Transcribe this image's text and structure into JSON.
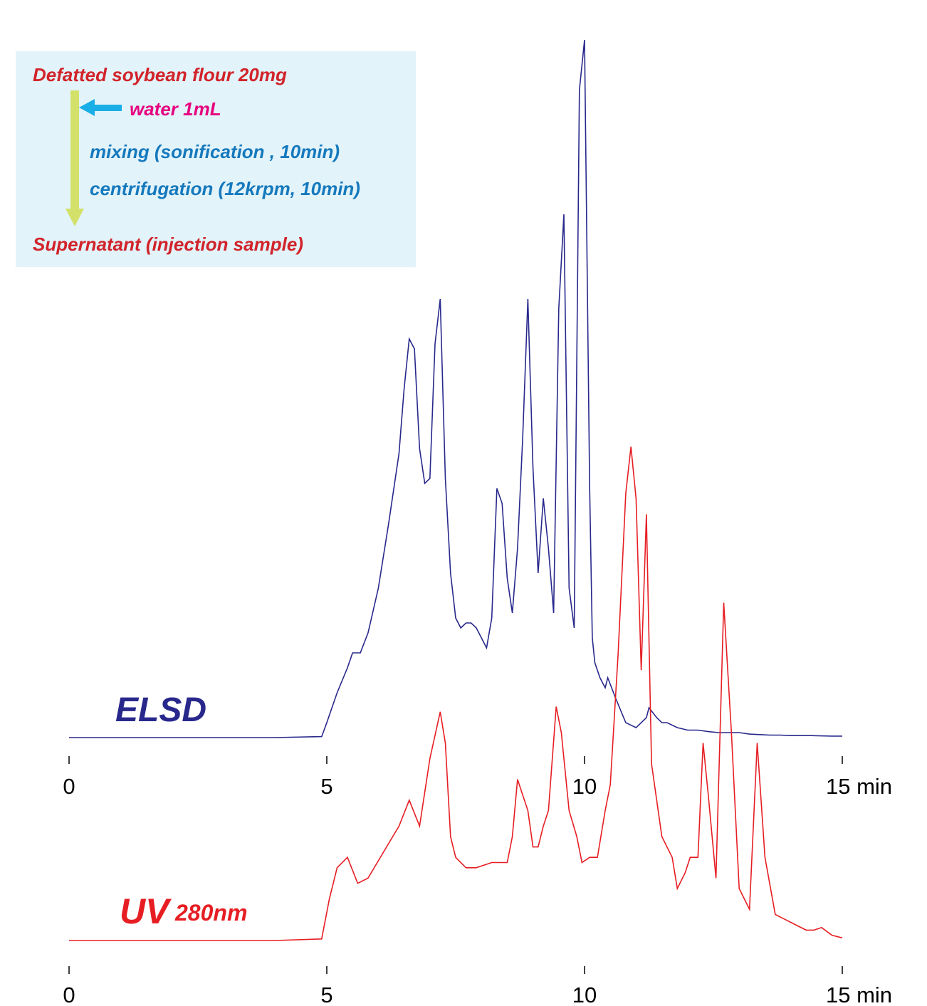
{
  "colors": {
    "elsd": "#28288c",
    "uv": "#e61e23",
    "box_bg": "#e2f3fa",
    "red_text": "#d2232a",
    "magenta_text": "#e6007e",
    "blue_text": "#1579bd",
    "flow_arrow": "#d3e16a",
    "water_arrow": "#1aaee7",
    "axis": "#000000"
  },
  "procedure": {
    "start": "Defatted soybean flour 20mg",
    "add": "water 1mL",
    "step1": "mixing (sonification , 10min)",
    "step2": "centrifugation (12krpm, 10min)",
    "end": "Supernatant (injection sample)"
  },
  "chart_data": [
    {
      "type": "line",
      "series": [
        {
          "name": "ELSD",
          "color": "#28288c"
        }
      ],
      "trace_label": "ELSD",
      "x_unit": "min",
      "xlim": [
        0,
        15
      ],
      "xticks": [
        0,
        5,
        10,
        15
      ],
      "xtick_labels": [
        "0",
        "5",
        "10",
        "15 min"
      ],
      "ylim": [
        0,
        100
      ],
      "y_axis_shown": false,
      "clipped_peaks_exceed_top": true,
      "x": [
        0,
        1,
        2,
        3,
        4,
        4.9,
        5.0,
        5.2,
        5.4,
        5.5,
        5.65,
        5.8,
        6.0,
        6.2,
        6.4,
        6.5,
        6.6,
        6.7,
        6.8,
        6.9,
        7.0,
        7.1,
        7.2,
        7.3,
        7.4,
        7.5,
        7.6,
        7.7,
        7.8,
        7.9,
        8.0,
        8.1,
        8.2,
        8.3,
        8.4,
        8.5,
        8.6,
        8.7,
        8.8,
        8.9,
        9.0,
        9.1,
        9.2,
        9.3,
        9.4,
        9.5,
        9.6,
        9.7,
        9.8,
        9.9,
        10.0,
        10.1,
        10.15,
        10.2,
        10.3,
        10.4,
        10.45,
        10.6,
        10.8,
        11.0,
        11.2,
        11.25,
        11.4,
        11.5,
        11.6,
        11.8,
        12.0,
        12.2,
        12.4,
        12.6,
        12.8,
        13.0,
        13.2,
        13.4,
        13.6,
        13.8,
        14.0,
        14.4,
        14.8,
        15.0
      ],
      "y": [
        0,
        0,
        0,
        0,
        0,
        0.2,
        3,
        9,
        14,
        17,
        17,
        21,
        30,
        43,
        57,
        70,
        80,
        78,
        58,
        51,
        52,
        79,
        88,
        52,
        33,
        24,
        22,
        23,
        23,
        22,
        20,
        18,
        24,
        50,
        47,
        32,
        25,
        38,
        60,
        88,
        54,
        33,
        48,
        38,
        25,
        86,
        105,
        30,
        22,
        130,
        140,
        50,
        20,
        15,
        12,
        10,
        12,
        8,
        3,
        2,
        4,
        6,
        4,
        3,
        3,
        2,
        1.5,
        1.5,
        1.2,
        1,
        1,
        1,
        0.7,
        0.6,
        0.5,
        0.5,
        0.4,
        0.4,
        0.3,
        0.3
      ]
    },
    {
      "type": "line",
      "series": [
        {
          "name": "UV 280nm",
          "color": "#e61e23"
        }
      ],
      "trace_label_main": "UV",
      "trace_label_sub": "280nm",
      "x_unit": "min",
      "xlim": [
        0,
        15
      ],
      "xticks": [
        0,
        5,
        10,
        15
      ],
      "xtick_labels": [
        "0",
        "5",
        "10",
        "15 min"
      ],
      "ylim": [
        0,
        100
      ],
      "y_axis_shown": false,
      "x": [
        0,
        1,
        2,
        3,
        4,
        4.9,
        5.05,
        5.2,
        5.4,
        5.6,
        5.8,
        6.1,
        6.4,
        6.6,
        6.8,
        7.0,
        7.2,
        7.3,
        7.4,
        7.5,
        7.7,
        7.9,
        8.2,
        8.5,
        8.6,
        8.7,
        8.9,
        9.0,
        9.1,
        9.2,
        9.3,
        9.45,
        9.55,
        9.7,
        9.85,
        9.95,
        10.1,
        10.25,
        10.4,
        10.5,
        10.65,
        10.8,
        10.9,
        11.0,
        11.1,
        11.2,
        11.3,
        11.5,
        11.7,
        11.8,
        11.95,
        12.05,
        12.2,
        12.3,
        12.4,
        12.55,
        12.7,
        12.85,
        13.0,
        13.2,
        13.35,
        13.5,
        13.7,
        13.9,
        14.1,
        14.3,
        14.45,
        14.6,
        14.8,
        15.0
      ],
      "y": [
        0,
        0,
        0,
        0,
        0,
        0.3,
        8,
        14,
        16,
        11,
        12,
        17,
        22,
        27,
        22,
        35,
        44,
        38,
        20,
        16,
        14,
        14,
        15,
        15,
        20,
        31,
        25,
        18,
        18,
        22,
        25,
        45,
        40,
        25,
        20,
        15,
        16,
        16,
        25,
        30,
        55,
        86,
        95,
        85,
        52,
        82,
        34,
        20,
        16,
        10,
        13,
        16,
        16,
        38,
        28,
        12,
        65,
        40,
        10,
        6,
        38,
        16,
        5,
        4,
        3,
        2,
        2,
        2.5,
        1,
        0.5
      ]
    }
  ]
}
